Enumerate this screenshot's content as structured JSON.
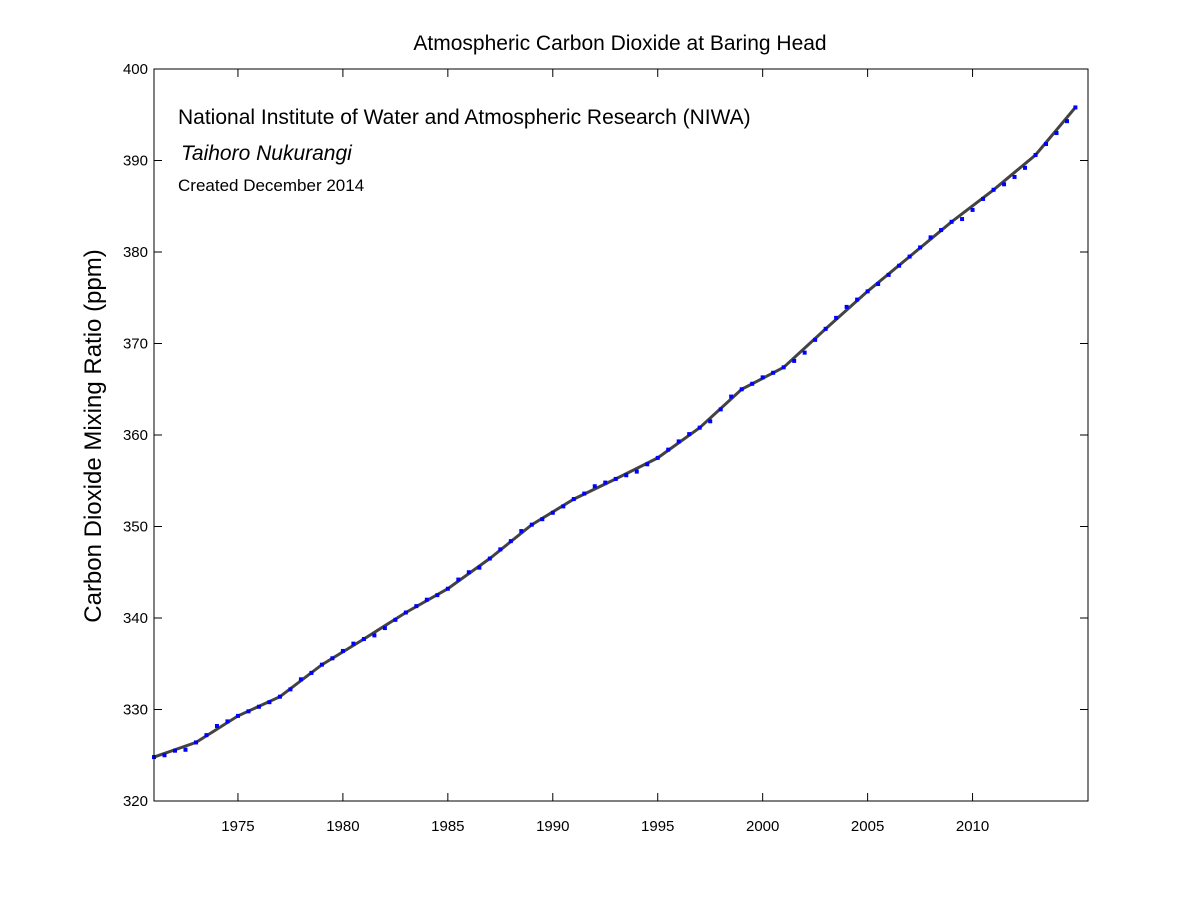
{
  "chart_data": {
    "type": "scatter",
    "title": "Atmospheric Carbon Dioxide at Baring Head",
    "xlabel": "",
    "ylabel": "Carbon Dioxide Mixing Ratio (ppm)",
    "xlim": [
      1971,
      2015.5
    ],
    "ylim": [
      320,
      400
    ],
    "x_ticks": [
      1975,
      1980,
      1985,
      1990,
      1995,
      2000,
      2005,
      2010
    ],
    "y_ticks": [
      320,
      330,
      340,
      350,
      360,
      370,
      380,
      390,
      400
    ],
    "grid": false,
    "annotations": [
      "National Institute of Water and Atmospheric Research (NIWA)",
      "Taihoro Nukurangi",
      "Created December 2014"
    ],
    "colors": {
      "observations": "#0000ff",
      "trend": "#000000"
    },
    "series": [
      {
        "kind": "observations",
        "style": "blue-dots",
        "x": [
          1971.0,
          1971.5,
          1972.0,
          1972.5,
          1973.0,
          1973.5,
          1974.0,
          1974.5,
          1975.0,
          1975.5,
          1976.0,
          1976.5,
          1977.0,
          1977.5,
          1978.0,
          1978.5,
          1979.0,
          1979.5,
          1980.0,
          1980.5,
          1981.0,
          1981.5,
          1982.0,
          1982.5,
          1983.0,
          1983.5,
          1984.0,
          1984.5,
          1985.0,
          1985.5,
          1986.0,
          1986.5,
          1987.0,
          1987.5,
          1988.0,
          1988.5,
          1989.0,
          1989.5,
          1990.0,
          1990.5,
          1991.0,
          1991.5,
          1992.0,
          1992.5,
          1993.0,
          1993.5,
          1994.0,
          1994.5,
          1995.0,
          1995.5,
          1996.0,
          1996.5,
          1997.0,
          1997.5,
          1998.0,
          1998.5,
          1999.0,
          1999.5,
          2000.0,
          2000.5,
          2001.0,
          2001.5,
          2002.0,
          2002.5,
          2003.0,
          2003.5,
          2004.0,
          2004.5,
          2005.0,
          2005.5,
          2006.0,
          2006.5,
          2007.0,
          2007.5,
          2008.0,
          2008.5,
          2009.0,
          2009.5,
          2010.0,
          2010.5,
          2011.0,
          2011.5,
          2012.0,
          2012.5,
          2013.0,
          2013.5,
          2014.0,
          2014.5,
          2014.9
        ],
        "y": [
          324.8,
          325.0,
          325.5,
          325.6,
          326.4,
          327.2,
          328.2,
          328.7,
          329.3,
          329.8,
          330.3,
          330.8,
          331.4,
          332.2,
          333.3,
          334.0,
          334.9,
          335.6,
          336.4,
          337.2,
          337.7,
          338.1,
          338.9,
          339.8,
          340.6,
          341.3,
          342.0,
          342.5,
          343.2,
          344.2,
          345.0,
          345.5,
          346.5,
          347.5,
          348.4,
          349.5,
          350.2,
          350.8,
          351.5,
          352.2,
          353.0,
          353.6,
          354.4,
          354.8,
          355.2,
          355.6,
          356.0,
          356.8,
          357.5,
          358.4,
          359.3,
          360.1,
          360.8,
          361.5,
          362.8,
          364.2,
          365.0,
          365.6,
          366.3,
          366.8,
          367.4,
          368.1,
          369.0,
          370.4,
          371.6,
          372.8,
          374.0,
          374.8,
          375.7,
          376.5,
          377.5,
          378.5,
          379.5,
          380.5,
          381.6,
          382.4,
          383.3,
          383.6,
          384.6,
          385.8,
          386.8,
          387.4,
          388.2,
          389.2,
          390.6,
          391.8,
          393.0,
          394.3,
          395.8
        ]
      },
      {
        "kind": "trend",
        "style": "black-line",
        "x": [
          1971.0,
          1973.0,
          1975.0,
          1977.0,
          1979.0,
          1981.0,
          1983.0,
          1985.0,
          1987.0,
          1989.0,
          1991.0,
          1993.0,
          1995.0,
          1997.0,
          1999.0,
          2001.0,
          2003.0,
          2005.0,
          2007.0,
          2009.0,
          2011.0,
          2013.0,
          2014.9
        ],
        "y": [
          324.8,
          326.4,
          329.3,
          331.4,
          334.9,
          337.7,
          340.6,
          343.2,
          346.5,
          350.2,
          353.0,
          355.2,
          357.5,
          360.8,
          365.0,
          367.4,
          371.6,
          375.7,
          379.5,
          383.3,
          386.8,
          390.6,
          395.8
        ]
      }
    ]
  }
}
